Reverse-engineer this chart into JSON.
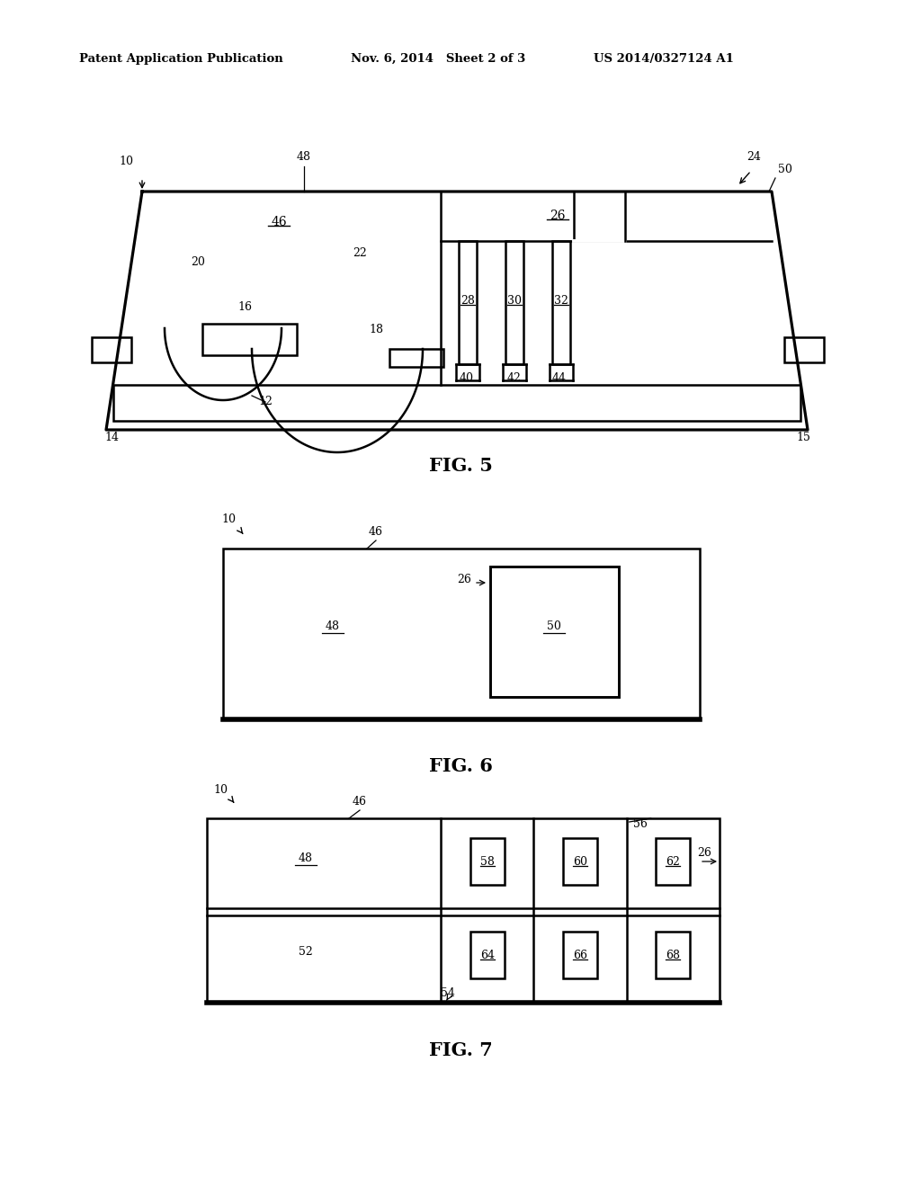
{
  "bg_color": "#ffffff",
  "line_color": "#000000",
  "header_left": "Patent Application Publication",
  "header_mid": "Nov. 6, 2014   Sheet 2 of 3",
  "header_right": "US 2014/0327124 A1",
  "fig5_caption": "FIG. 5",
  "fig6_caption": "FIG. 6",
  "fig7_caption": "FIG. 7"
}
